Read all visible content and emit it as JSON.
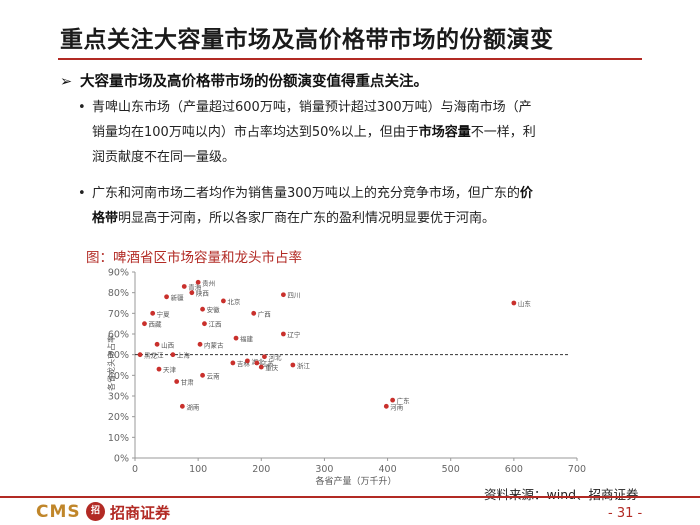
{
  "slide": {
    "title": "重点关注大容量市场及高价格带市场的份额演变",
    "main_point": "大容量市场及高价格带市场的份额演变值得重点关注。",
    "arrow": "➢",
    "bullet_marker": "•",
    "bullet1": {
      "line1": "青啤山东市场（产量超过600万吨，销量预计超过300万吨）与海南市场（产",
      "line2_a": "销量均在100万吨以内）市占率均达到50%以上，但由于",
      "line2_bold": "市场容量",
      "line2_b": "不一样，利",
      "line3": "润贡献度不在同一量级。"
    },
    "bullet2": {
      "line1_a": "广东和河南市场二者均作为销售量300万吨以上的充分竞争市场，但广东的",
      "line1_bold": "价",
      "line2_bold": "格带",
      "line2_b": "明显高于河南，所以各家厂商在广东的盈利情况明显要优于河南。"
    },
    "figure_caption": "图：啤酒省区市场容量和龙头市占率",
    "source": "资料来源：wind、招商证券",
    "page_number": "- 31 -",
    "logo_text": "CMS",
    "logo_badge": "招",
    "logo_name": "招商证券"
  },
  "colors": {
    "accent": "#b22a24",
    "point": "#c9302c",
    "gold": "#c0862a"
  },
  "chart_data": {
    "type": "scatter",
    "xlabel": "各省产量（万千升）",
    "ylabel": "各省龙头市占率",
    "xlim": [
      0,
      700
    ],
    "ylim": [
      0,
      0.9
    ],
    "x_ticks": [
      0,
      100,
      200,
      300,
      400,
      500,
      600,
      700
    ],
    "y_ticks": [
      0,
      0.1,
      0.2,
      0.3,
      0.4,
      0.5,
      0.6,
      0.7,
      0.8,
      0.9
    ],
    "x_tick_labels": [
      "0",
      "100",
      "200",
      "300",
      "400",
      "500",
      "600",
      "700"
    ],
    "y_tick_labels": [
      "0%",
      "10%",
      "20%",
      "30%",
      "40%",
      "50%",
      "60%",
      "70%",
      "80%",
      "90%"
    ],
    "reference_line_y": 0.5,
    "grid": false,
    "points": [
      {
        "label": "贵州",
        "x": 100,
        "y": 0.85
      },
      {
        "label": "青海",
        "x": 78,
        "y": 0.83
      },
      {
        "label": "陕西",
        "x": 90,
        "y": 0.8
      },
      {
        "label": "新疆",
        "x": 50,
        "y": 0.78
      },
      {
        "label": "四川",
        "x": 235,
        "y": 0.79
      },
      {
        "label": "北京",
        "x": 140,
        "y": 0.76
      },
      {
        "label": "山东",
        "x": 600,
        "y": 0.75
      },
      {
        "label": "安徽",
        "x": 107,
        "y": 0.72
      },
      {
        "label": "宁夏",
        "x": 28,
        "y": 0.7
      },
      {
        "label": "广西",
        "x": 188,
        "y": 0.7
      },
      {
        "label": "西藏",
        "x": 15,
        "y": 0.65
      },
      {
        "label": "江西",
        "x": 110,
        "y": 0.65
      },
      {
        "label": "辽宁",
        "x": 235,
        "y": 0.6
      },
      {
        "label": "福建",
        "x": 160,
        "y": 0.58
      },
      {
        "label": "山西",
        "x": 35,
        "y": 0.55
      },
      {
        "label": "内蒙古",
        "x": 103,
        "y": 0.55
      },
      {
        "label": "黑龙江",
        "x": 8,
        "y": 0.5
      },
      {
        "label": "上海",
        "x": 60,
        "y": 0.5
      },
      {
        "label": "河北",
        "x": 205,
        "y": 0.49
      },
      {
        "label": "吉林",
        "x": 155,
        "y": 0.46
      },
      {
        "label": "湖北",
        "x": 178,
        "y": 0.47
      },
      {
        "label": "江苏",
        "x": 193,
        "y": 0.46
      },
      {
        "label": "重庆",
        "x": 200,
        "y": 0.44
      },
      {
        "label": "浙江",
        "x": 250,
        "y": 0.45
      },
      {
        "label": "天津",
        "x": 38,
        "y": 0.43
      },
      {
        "label": "云南",
        "x": 107,
        "y": 0.4
      },
      {
        "label": "甘肃",
        "x": 66,
        "y": 0.37
      },
      {
        "label": "广东",
        "x": 408,
        "y": 0.28
      },
      {
        "label": "河南",
        "x": 398,
        "y": 0.25
      },
      {
        "label": "湖南",
        "x": 75,
        "y": 0.25
      }
    ]
  }
}
